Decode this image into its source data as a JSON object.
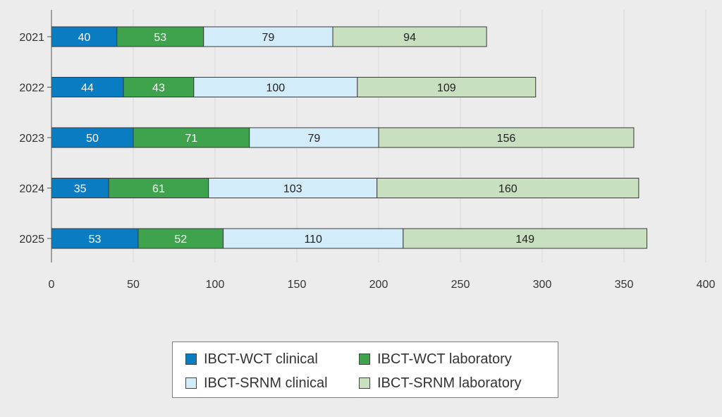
{
  "chart_data": {
    "type": "bar",
    "orientation": "horizontal",
    "stacked": true,
    "title": "",
    "xlabel": "",
    "ylabel": "",
    "categories": [
      "2021",
      "2022",
      "2023",
      "2024",
      "2025"
    ],
    "series": [
      {
        "name": "IBCT-WCT clinical",
        "color": "#0a7cc2",
        "label_color": "#ffffff",
        "values": [
          40,
          44,
          50,
          35,
          53
        ]
      },
      {
        "name": "IBCT-WCT laboratory",
        "color": "#3fa34d",
        "label_color": "#ffffff",
        "values": [
          53,
          43,
          71,
          61,
          52
        ]
      },
      {
        "name": "IBCT-SRNM clinical",
        "color": "#d2ecf9",
        "label_color": "#222222",
        "values": [
          79,
          100,
          79,
          103,
          110
        ]
      },
      {
        "name": "IBCT-SRNM laboratory",
        "color": "#c8dfc0",
        "label_color": "#222222",
        "values": [
          94,
          109,
          156,
          160,
          149
        ]
      }
    ],
    "xlim": [
      0,
      400
    ],
    "xticks": [
      0,
      50,
      100,
      150,
      200,
      250,
      300,
      350,
      400
    ],
    "grid": true,
    "legend_position": "bottom"
  }
}
